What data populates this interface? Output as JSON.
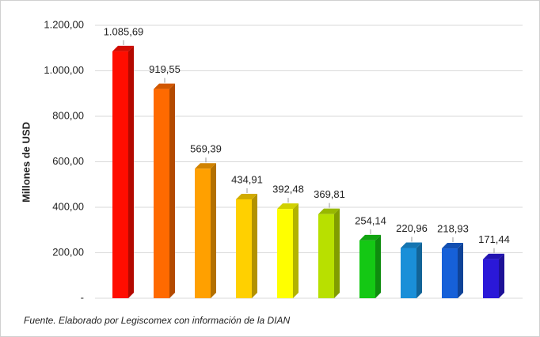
{
  "chart_data": {
    "type": "bar",
    "y_label": "Millones de USD",
    "source": "Fuente. Elaborado por Legiscomex con información de la DIAN",
    "categories": [
      null,
      null,
      null,
      null,
      null,
      null,
      null,
      null,
      null,
      null
    ],
    "values": [
      1085.69,
      919.55,
      569.39,
      434.91,
      392.48,
      369.81,
      254.14,
      220.96,
      218.93,
      171.44
    ],
    "value_labels": [
      "1.085,69",
      "919,55",
      "569,39",
      "434,91",
      "392,48",
      "369,81",
      "254,14",
      "220,96",
      "218,93",
      "171,44"
    ],
    "colors": [
      "#ff0d00",
      "#ff6a00",
      "#ffa000",
      "#ffd000",
      "#ffff00",
      "#b8e000",
      "#14c814",
      "#1a8fd8",
      "#1660d8",
      "#2a18d8"
    ],
    "ylim": [
      0,
      1200
    ],
    "yticks": [
      {
        "value": 0,
        "label": "-"
      },
      {
        "value": 200,
        "label": "200,00"
      },
      {
        "value": 400,
        "label": "400,00"
      },
      {
        "value": 600,
        "label": "600,00"
      },
      {
        "value": 800,
        "label": "800,00"
      },
      {
        "value": 1000,
        "label": "1.000,00"
      },
      {
        "value": 1200,
        "label": "1.200,00"
      }
    ],
    "grid": true
  }
}
